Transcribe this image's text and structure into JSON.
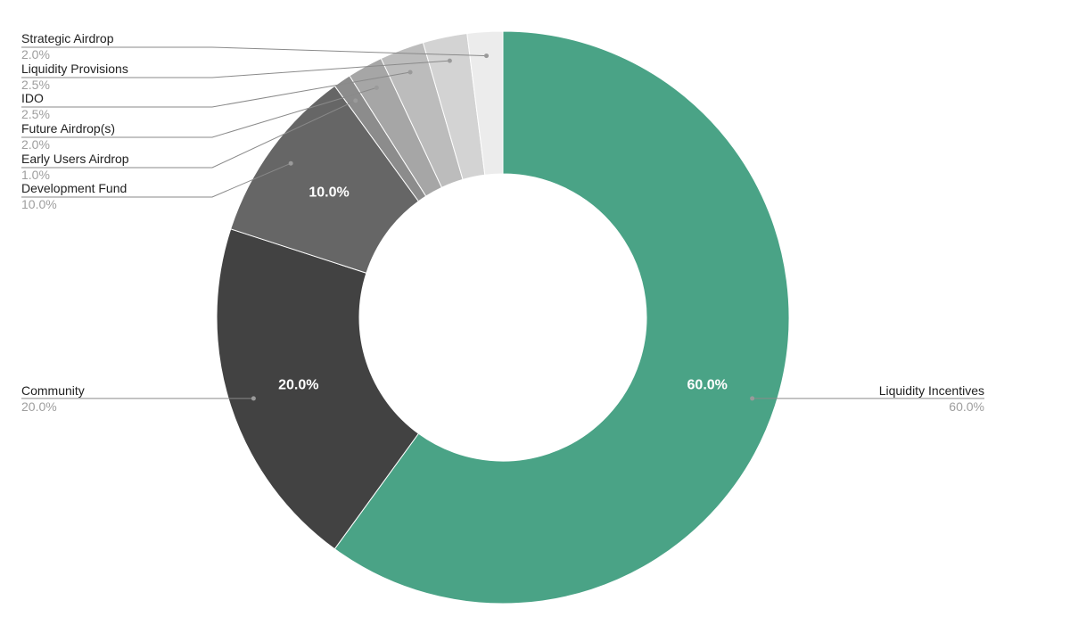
{
  "chart_data": {
    "type": "pie",
    "title": "",
    "donut": true,
    "slices": [
      {
        "name": "Liquidity Incentives",
        "value": 60.0,
        "label": "60.0%",
        "color": "#4aa386"
      },
      {
        "name": "Community",
        "value": 20.0,
        "label": "20.0%",
        "color": "#424242"
      },
      {
        "name": "Development Fund",
        "value": 10.0,
        "label": "10.0%",
        "color": "#666666"
      },
      {
        "name": "Early Users Airdrop",
        "value": 1.0,
        "label": "1.0%",
        "color": "#8c8c8c"
      },
      {
        "name": "Future Airdrop(s)",
        "value": 2.0,
        "label": "2.0%",
        "color": "#a6a6a6"
      },
      {
        "name": "IDO",
        "value": 2.5,
        "label": "2.5%",
        "color": "#bcbcbc"
      },
      {
        "name": "Liquidity Provisions",
        "value": 2.5,
        "label": "2.5%",
        "color": "#d3d3d3"
      },
      {
        "name": "Strategic Airdrop",
        "value": 2.0,
        "label": "2.0%",
        "color": "#ececec"
      }
    ],
    "inside_labels": [
      "60.0%",
      "20.0%",
      "10.0%"
    ],
    "legend": "leader-line labels"
  }
}
